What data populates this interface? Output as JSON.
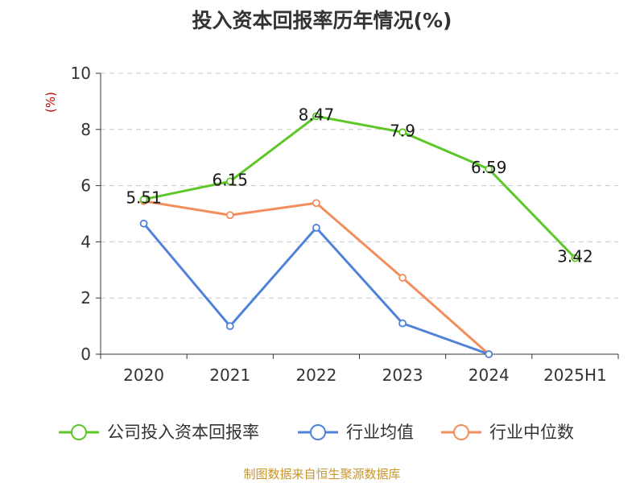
{
  "title": "投入资本回报率历年情况(%)",
  "footer": "制图数据来自恒生聚源数据库",
  "chart_data": {
    "type": "line",
    "title": "投入资本回报率历年情况(%)",
    "ylabel": "(%)",
    "xlabel": "",
    "categories": [
      "2020",
      "2021",
      "2022",
      "2023",
      "2024",
      "2025H1"
    ],
    "ylim": [
      0,
      10
    ],
    "yticks": [
      0,
      2,
      4,
      6,
      8,
      10
    ],
    "grid": true,
    "legend_position": "bottom",
    "series": [
      {
        "name": "公司投入资本回报率",
        "color": "#5cc726",
        "values": [
          5.51,
          6.15,
          8.47,
          7.9,
          6.59,
          3.42
        ],
        "labels": [
          "5.51",
          "6.15",
          "8.47",
          "7.9",
          "6.59",
          "3.42"
        ]
      },
      {
        "name": "行业均值",
        "color": "#4f82d8",
        "values": [
          4.65,
          1.0,
          4.5,
          1.1,
          0.0,
          null
        ]
      },
      {
        "name": "行业中位数",
        "color": "#f28e5c",
        "values": [
          5.45,
          4.95,
          5.38,
          2.72,
          0.0,
          null
        ]
      }
    ]
  }
}
